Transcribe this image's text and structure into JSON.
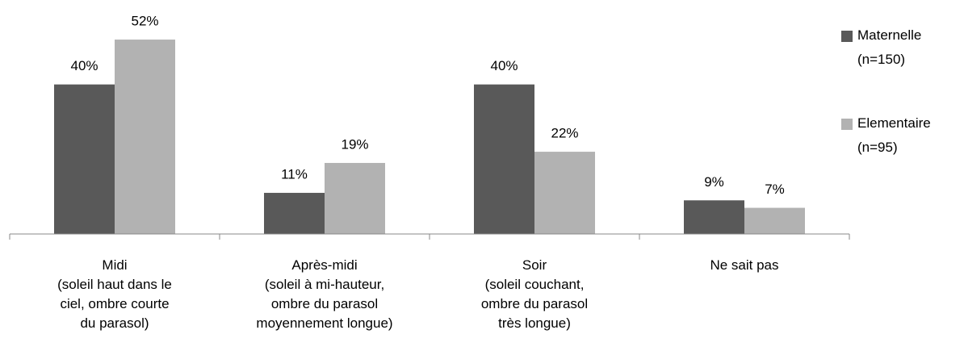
{
  "chart_data": {
    "type": "bar",
    "categories": [
      "Midi\n(soleil haut dans le\nciel, ombre courte\ndu parasol)",
      "Après-midi\n(soleil à mi-hauteur,\nombre du parasol\nmoyennement longue)",
      "Soir\n(soleil couchant,\nombre du parasol\ntrès longue)",
      "Ne sait pas"
    ],
    "series": [
      {
        "name": "Maternelle\n(n=150)",
        "color": "#595959",
        "values": [
          40,
          11,
          40,
          9
        ],
        "value_labels": [
          "40%",
          "11%",
          "40%",
          "9%"
        ]
      },
      {
        "name": "Elementaire\n(n=95)",
        "color": "#b2b2b2",
        "values": [
          52,
          19,
          22,
          7
        ],
        "value_labels": [
          "52%",
          "19%",
          "22%",
          "7%"
        ]
      }
    ],
    "ylim": [
      0,
      60
    ],
    "legend": "right"
  }
}
